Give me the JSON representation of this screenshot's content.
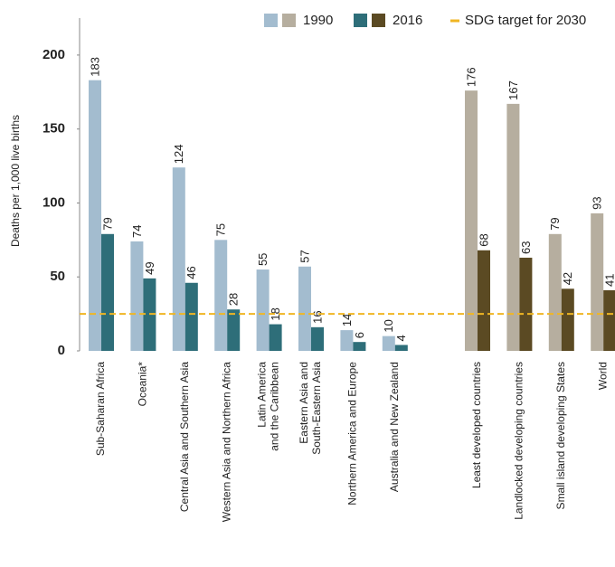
{
  "chart_data": {
    "type": "bar",
    "y_label": "Deaths per 1,000 live births",
    "ylim": [
      0,
      225
    ],
    "yticks": [
      0,
      50,
      100,
      150,
      200
    ],
    "target": {
      "name": "SDG target for 2030",
      "value": 25,
      "color": "#f0b623"
    },
    "groups": [
      {
        "categories": [
          "Sub-Saharan Africa",
          "Oceania*",
          "Central Asia and Southern Asia",
          "Western Asia and Northern Africa",
          "Latin America\nand the Caribbean",
          "Eastern Asia and\nSouth-Eastern Asia",
          "Northern America and Europe",
          "Australia and New Zealand"
        ],
        "series": [
          {
            "name": "1990",
            "color": "#a3bccf",
            "values": [
              183,
              74,
              124,
              75,
              55,
              57,
              14,
              10
            ]
          },
          {
            "name": "2016",
            "color": "#2e6e79",
            "values": [
              79,
              49,
              46,
              28,
              18,
              16,
              6,
              4
            ]
          }
        ]
      },
      {
        "categories": [
          "Least developed countries",
          "Landlocked developing countries",
          "Small island developing States",
          "World"
        ],
        "series": [
          {
            "color": "#b6ae9f",
            "values": [
              176,
              167,
              79,
              93
            ]
          },
          {
            "color": "#5b4a23",
            "values": [
              68,
              63,
              42,
              41
            ]
          }
        ]
      }
    ]
  }
}
